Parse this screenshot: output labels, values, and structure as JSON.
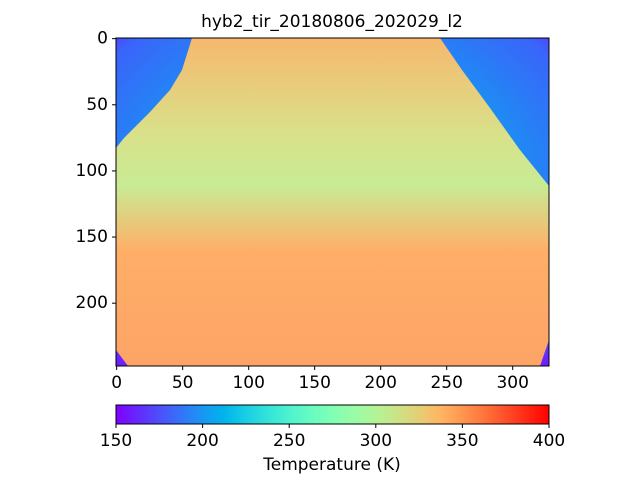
{
  "chart_data": {
    "type": "image",
    "title": "hyb2_tir_20180806_202029_l2",
    "xlim": [
      -0.5,
      327.5
    ],
    "ylim": [
      247.5,
      -0.5
    ],
    "xticks": [
      0,
      50,
      100,
      150,
      200,
      250,
      300
    ],
    "yticks": [
      0,
      50,
      100,
      150,
      200
    ],
    "colormap": "rainbow",
    "clim": [
      150,
      400
    ],
    "cticks": [
      150,
      200,
      250,
      300,
      350,
      400
    ],
    "colorbar_label": "Temperature (K)"
  }
}
